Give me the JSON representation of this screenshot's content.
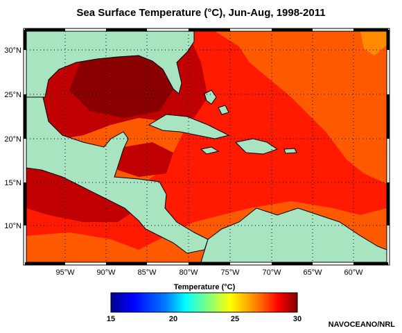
{
  "title": "Sea Surface Temperature (°C), Jun-Aug, 1998-2011",
  "lat_labels": [
    "30°N",
    "25°N",
    "20°N",
    "15°N",
    "10°N"
  ],
  "lon_labels": [
    "95°W",
    "90°W",
    "85°W",
    "80°W",
    "75°W",
    "70°W",
    "65°W",
    "60°W"
  ],
  "colorbar": {
    "title": "Temperature (°C)",
    "ticks": [
      "15",
      "20",
      "25",
      "30"
    ],
    "min": 15,
    "max": 30,
    "colors": [
      "#00008f",
      "#0000ff",
      "#0080ff",
      "#00ffff",
      "#80ff80",
      "#ffff00",
      "#ff8000",
      "#ff0000",
      "#800000"
    ]
  },
  "credit": "NAVOCEANO/NRL",
  "colors": {
    "land": "#a8e4c0",
    "sst_28": "#ff4a00",
    "sst_29": "#ff1a00",
    "sst_30": "#c00000",
    "sst_31": "#8a0000"
  }
}
